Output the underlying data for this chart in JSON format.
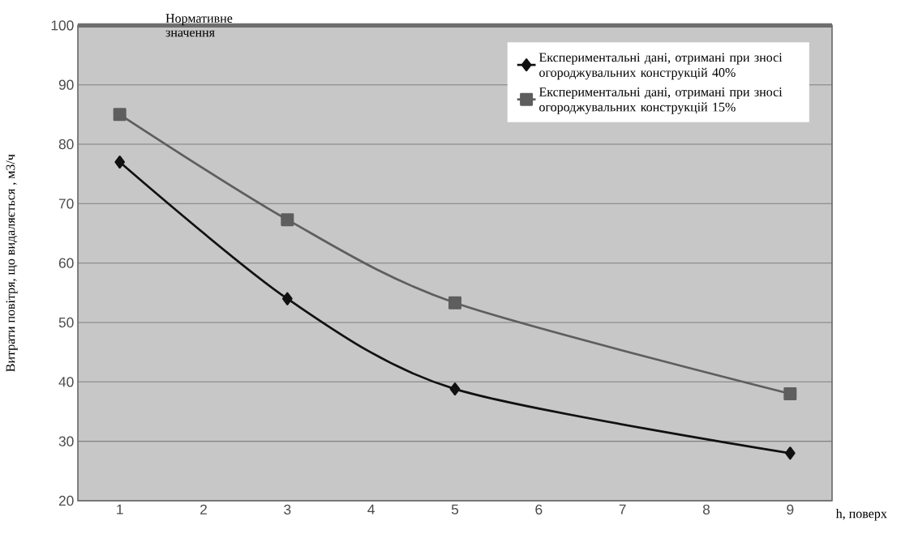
{
  "chart_data": {
    "type": "line",
    "xlabel": "h, поверх",
    "ylabel": "Витрати повітря, що видаляється , м3/ч",
    "x": [
      1,
      3,
      5,
      9
    ],
    "series": [
      {
        "name": "Експериментальні дані, отримані при зносі огороджувальних конструкцій 40%",
        "color": "#111111",
        "marker": "diamond",
        "values": [
          77,
          54,
          38.8,
          28
        ]
      },
      {
        "name": "Експериментальні дані, отримані при зносі огороджувальних конструкцій 15%",
        "color": "#5e5e5e",
        "marker": "square",
        "values": [
          85,
          67.3,
          53.3,
          38
        ]
      }
    ],
    "xlim": [
      0.5,
      9.5
    ],
    "xticks": [
      1,
      2,
      3,
      4,
      5,
      6,
      7,
      8,
      9
    ],
    "ylim": [
      20,
      100
    ],
    "yticks": [
      20,
      30,
      40,
      50,
      60,
      70,
      80,
      90,
      100
    ],
    "ref_lines": [
      {
        "axis": "y",
        "value": 100,
        "label": "Нормативне значення",
        "color": "#6e6e6e"
      }
    ],
    "grid": "y",
    "legend": "top right",
    "line_style": "solid"
  }
}
